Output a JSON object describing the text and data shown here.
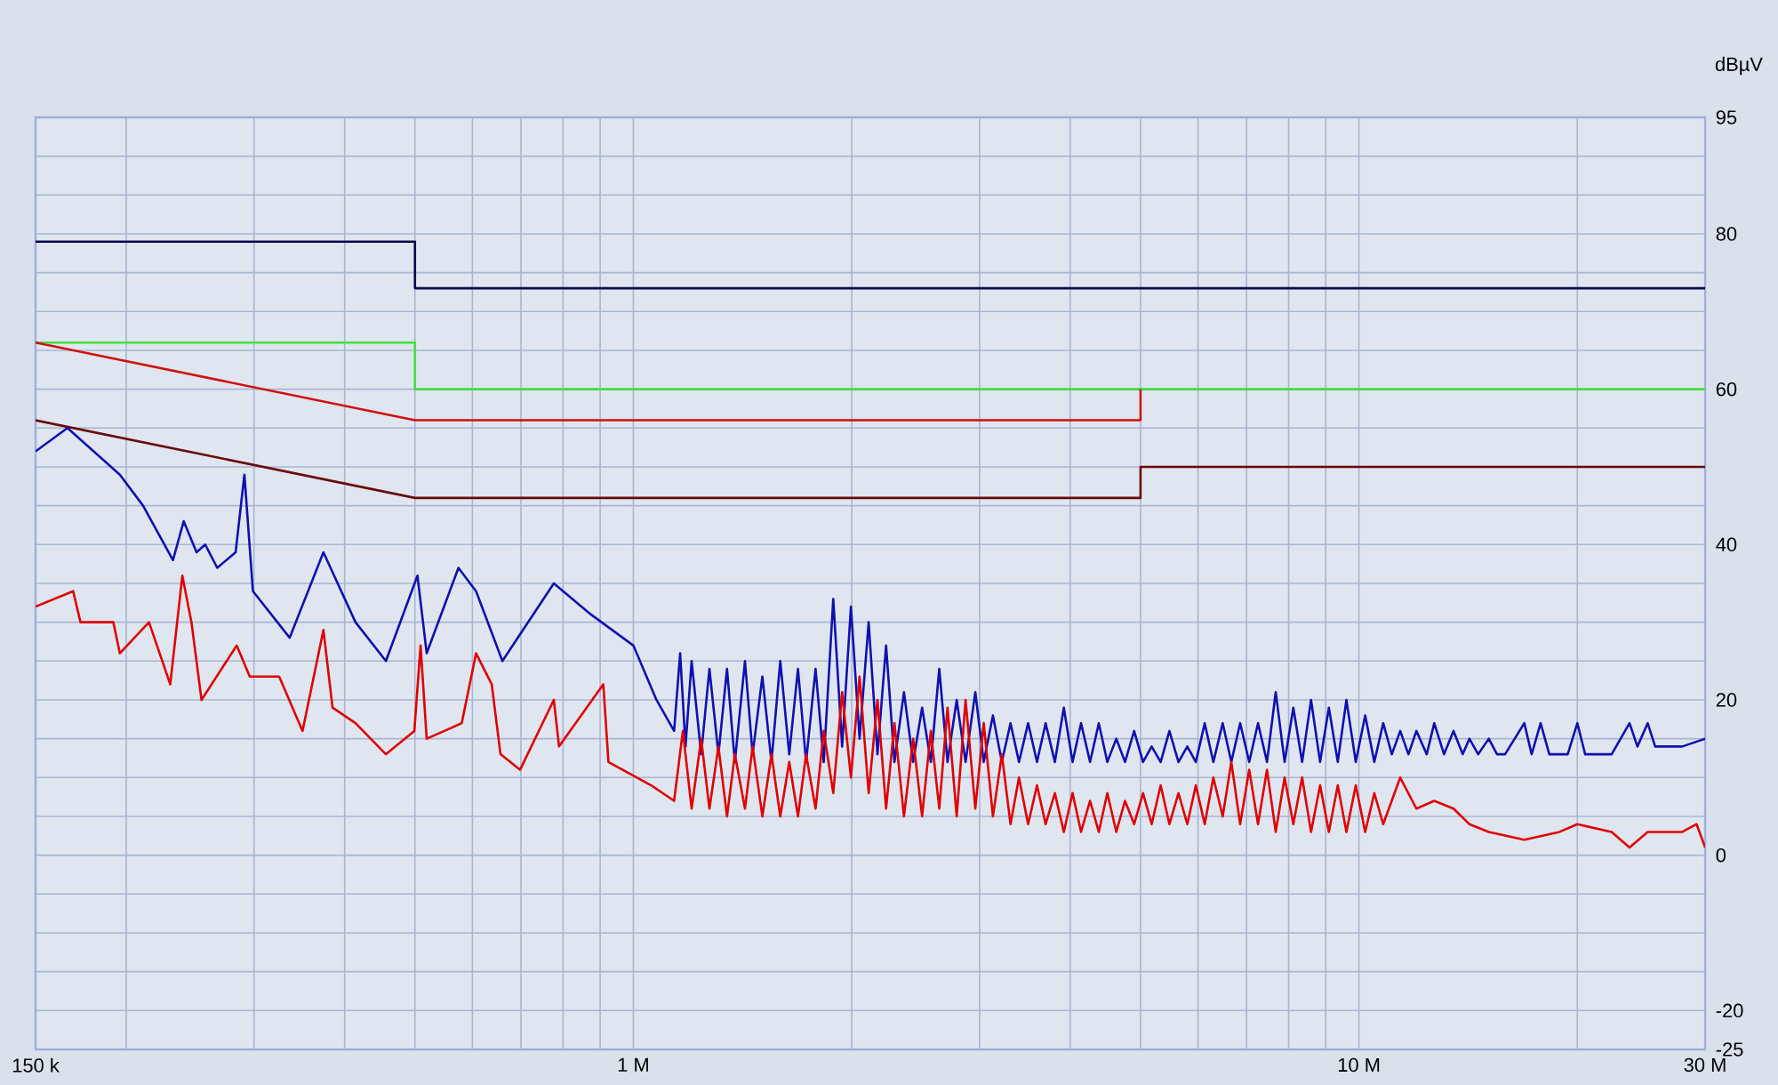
{
  "chart_data": {
    "type": "line",
    "ylabel": "dBµV",
    "log": "x",
    "grid": true,
    "xlim": [
      0.15,
      30
    ],
    "ylim": [
      -25,
      95
    ],
    "xticks": [
      {
        "value": 0.15,
        "label": "150 k"
      },
      {
        "value": 0.2,
        "label": null
      },
      {
        "value": 0.3,
        "label": null
      },
      {
        "value": 0.4,
        "label": null
      },
      {
        "value": 0.5,
        "label": null
      },
      {
        "value": 0.6,
        "label": null
      },
      {
        "value": 0.7,
        "label": null
      },
      {
        "value": 0.8,
        "label": null
      },
      {
        "value": 0.9,
        "label": null
      },
      {
        "value": 1,
        "label": "1 M"
      },
      {
        "value": 2,
        "label": null
      },
      {
        "value": 3,
        "label": null
      },
      {
        "value": 4,
        "label": null
      },
      {
        "value": 5,
        "label": null
      },
      {
        "value": 6,
        "label": null
      },
      {
        "value": 7,
        "label": null
      },
      {
        "value": 8,
        "label": null
      },
      {
        "value": 9,
        "label": null
      },
      {
        "value": 10,
        "label": "10 M"
      },
      {
        "value": 20,
        "label": null
      },
      {
        "value": 30,
        "label": "30 M"
      }
    ],
    "yticks": [
      -25,
      -20,
      {
        "value": -15,
        "label": null
      },
      {
        "value": -10,
        "label": null
      },
      {
        "value": -5,
        "label": null
      },
      0,
      {
        "value": 5,
        "label": null
      },
      {
        "value": 10,
        "label": null
      },
      {
        "value": 15,
        "label": null
      },
      20,
      {
        "value": 25,
        "label": null
      },
      {
        "value": 30,
        "label": null
      },
      {
        "value": 35,
        "label": null
      },
      40,
      {
        "value": 45,
        "label": null
      },
      {
        "value": 50,
        "label": null
      },
      {
        "value": 55,
        "label": null
      },
      60,
      {
        "value": 65,
        "label": null
      },
      {
        "value": 70,
        "label": null
      },
      {
        "value": 75,
        "label": null
      },
      80,
      {
        "value": 85,
        "label": null
      },
      {
        "value": 90,
        "label": null
      },
      95
    ],
    "series": [
      {
        "color": "#0a0a50",
        "x": [
          0.15,
          0.5,
          0.5,
          30
        ],
        "values": [
          79,
          79,
          73,
          73
        ]
      },
      {
        "color": "#40e040",
        "x": [
          0.15,
          0.5,
          0.5,
          30
        ],
        "values": [
          66,
          66,
          60,
          60
        ]
      },
      {
        "color": "#d01010",
        "x": [
          0.15,
          0.5,
          5,
          5
        ],
        "values": [
          66,
          56,
          56,
          60
        ]
      },
      {
        "color": "#6a0a0a",
        "x": [
          0.15,
          0.5,
          5,
          5,
          30
        ],
        "values": [
          56,
          46,
          46,
          50,
          50
        ]
      },
      {
        "color": "#1010b0",
        "x": [
          0.15,
          0.166,
          0.196,
          0.211,
          0.232,
          0.24,
          0.25,
          0.257,
          0.267,
          0.283,
          0.291,
          0.299,
          0.336,
          0.374,
          0.414,
          0.456,
          0.504,
          0.519,
          0.574,
          0.607,
          0.66,
          0.777,
          0.874,
          1.0,
          1.076,
          1.138,
          1.16,
          1.18,
          1.203,
          1.24,
          1.273,
          1.31,
          1.346,
          1.38,
          1.425,
          1.46,
          1.506,
          1.55,
          1.594,
          1.64,
          1.686,
          1.73,
          1.783,
          1.83,
          1.886,
          1.94,
          1.995,
          2.05,
          2.11,
          2.17,
          2.23,
          2.29,
          2.36,
          2.43,
          2.5,
          2.57,
          2.64,
          2.71,
          2.79,
          2.87,
          2.96,
          3.04,
          3.13,
          3.22,
          3.31,
          3.4,
          3.5,
          3.6,
          3.7,
          3.81,
          3.92,
          4.03,
          4.14,
          4.26,
          4.38,
          4.5,
          4.63,
          4.76,
          4.9,
          5.04,
          5.18,
          5.33,
          5.48,
          5.64,
          5.8,
          5.96,
          6.13,
          6.3,
          6.49,
          6.67,
          6.86,
          7.06,
          7.26,
          7.47,
          7.68,
          7.9,
          8.12,
          8.35,
          8.59,
          8.84,
          9.09,
          9.35,
          9.61,
          9.9,
          10.2,
          10.5,
          10.8,
          11.1,
          11.4,
          11.7,
          12.0,
          12.4,
          12.7,
          13.1,
          13.5,
          13.9,
          14.2,
          14.6,
          15.1,
          15.5,
          15.9,
          16.9,
          17.3,
          17.8,
          18.3,
          19.4,
          20.0,
          20.5,
          22.3,
          23.6,
          24.2,
          25.0,
          25.6,
          27.9,
          30
        ],
        "values": [
          52,
          55,
          49,
          45,
          38,
          43,
          39,
          40,
          37,
          39,
          49,
          34,
          28,
          39,
          30,
          25,
          36,
          26,
          37,
          34,
          25,
          35,
          31,
          27,
          20,
          16,
          26,
          14,
          25,
          13,
          24,
          13,
          24,
          12,
          25,
          13,
          23,
          12,
          25,
          13,
          24,
          12,
          24,
          12,
          33,
          14,
          32,
          15,
          30,
          13,
          27,
          12,
          21,
          12,
          19,
          12,
          24,
          12,
          20,
          12,
          21,
          12,
          18,
          12,
          17,
          12,
          17,
          12,
          17,
          12,
          19,
          12,
          17,
          12,
          17,
          12,
          15,
          12,
          16,
          12,
          14,
          12,
          16,
          12,
          14,
          12,
          17,
          12,
          17,
          12,
          17,
          12,
          17,
          12,
          21,
          12,
          19,
          12,
          20,
          12,
          19,
          12,
          20,
          12,
          18,
          12,
          17,
          13,
          16,
          13,
          16,
          13,
          17,
          13,
          16,
          13,
          15,
          13,
          15,
          13,
          13,
          17,
          13,
          17,
          13,
          13,
          17,
          13,
          13,
          17,
          14,
          17,
          14,
          14,
          15
        ]
      },
      {
        "color": "#e00000",
        "x": [
          0.15,
          0.169,
          0.173,
          0.192,
          0.196,
          0.215,
          0.23,
          0.239,
          0.246,
          0.254,
          0.284,
          0.296,
          0.325,
          0.35,
          0.374,
          0.385,
          0.414,
          0.456,
          0.499,
          0.509,
          0.519,
          0.58,
          0.607,
          0.638,
          0.656,
          0.698,
          0.777,
          0.79,
          0.909,
          0.924,
          1.058,
          1.138,
          1.17,
          1.203,
          1.24,
          1.273,
          1.31,
          1.346,
          1.38,
          1.425,
          1.46,
          1.506,
          1.55,
          1.594,
          1.64,
          1.686,
          1.73,
          1.783,
          1.83,
          1.886,
          1.94,
          1.995,
          2.05,
          2.11,
          2.17,
          2.23,
          2.29,
          2.36,
          2.43,
          2.5,
          2.57,
          2.64,
          2.71,
          2.79,
          2.87,
          2.96,
          3.04,
          3.13,
          3.22,
          3.31,
          3.4,
          3.5,
          3.6,
          3.7,
          3.81,
          3.92,
          4.03,
          4.14,
          4.26,
          4.38,
          4.5,
          4.63,
          4.76,
          4.9,
          5.04,
          5.18,
          5.33,
          5.48,
          5.64,
          5.8,
          5.96,
          6.13,
          6.3,
          6.49,
          6.67,
          6.86,
          7.06,
          7.26,
          7.47,
          7.68,
          7.9,
          8.12,
          8.35,
          8.59,
          8.84,
          9.09,
          9.35,
          9.61,
          9.9,
          10.2,
          10.5,
          10.8,
          11.4,
          12.0,
          12.7,
          13.5,
          14.2,
          15.1,
          16.9,
          18.9,
          20.0,
          22.3,
          23.6,
          25.0,
          27.9,
          29.2,
          30
        ],
        "values": [
          32,
          34,
          30,
          30,
          26,
          30,
          22,
          36,
          30,
          20,
          27,
          23,
          23,
          16,
          29,
          19,
          17,
          13,
          16,
          27,
          15,
          17,
          26,
          22,
          13,
          11,
          20,
          14,
          22,
          12,
          9,
          7,
          16,
          6,
          15,
          6,
          14,
          5,
          13,
          6,
          14,
          5,
          13,
          5,
          12,
          5,
          13,
          6,
          16,
          8,
          21,
          10,
          23,
          8,
          20,
          6,
          17,
          5,
          15,
          5,
          16,
          6,
          19,
          5,
          20,
          6,
          17,
          5,
          13,
          4,
          10,
          4,
          9,
          4,
          8,
          3,
          8,
          3,
          7,
          3,
          8,
          3,
          7,
          4,
          8,
          4,
          9,
          4,
          8,
          4,
          9,
          4,
          10,
          5,
          12,
          4,
          11,
          4,
          11,
          3,
          10,
          4,
          10,
          3,
          9,
          3,
          9,
          3,
          9,
          3,
          8,
          4,
          10,
          6,
          7,
          6,
          4,
          3,
          2,
          3,
          4,
          3,
          1,
          3,
          3,
          4,
          1
        ]
      }
    ]
  }
}
